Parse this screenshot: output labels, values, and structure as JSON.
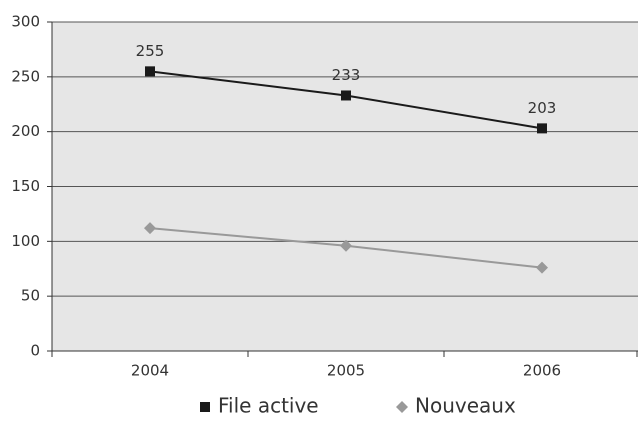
{
  "chart_data": {
    "type": "line",
    "categories": [
      "2004",
      "2005",
      "2006"
    ],
    "series": [
      {
        "name": "File active",
        "color": "#1a1a1a",
        "marker": "square",
        "data_labels": true,
        "values": [
          255,
          233,
          203
        ]
      },
      {
        "name": "Nouveaux",
        "color": "#999999",
        "marker": "diamond",
        "data_labels": false,
        "values": [
          112,
          96,
          76
        ]
      }
    ],
    "ylim": [
      0,
      300
    ],
    "yticks": [
      0,
      50,
      100,
      150,
      200,
      250,
      300
    ],
    "grid": true,
    "legend": "bottom",
    "plot_background": "#e6e6e6"
  }
}
